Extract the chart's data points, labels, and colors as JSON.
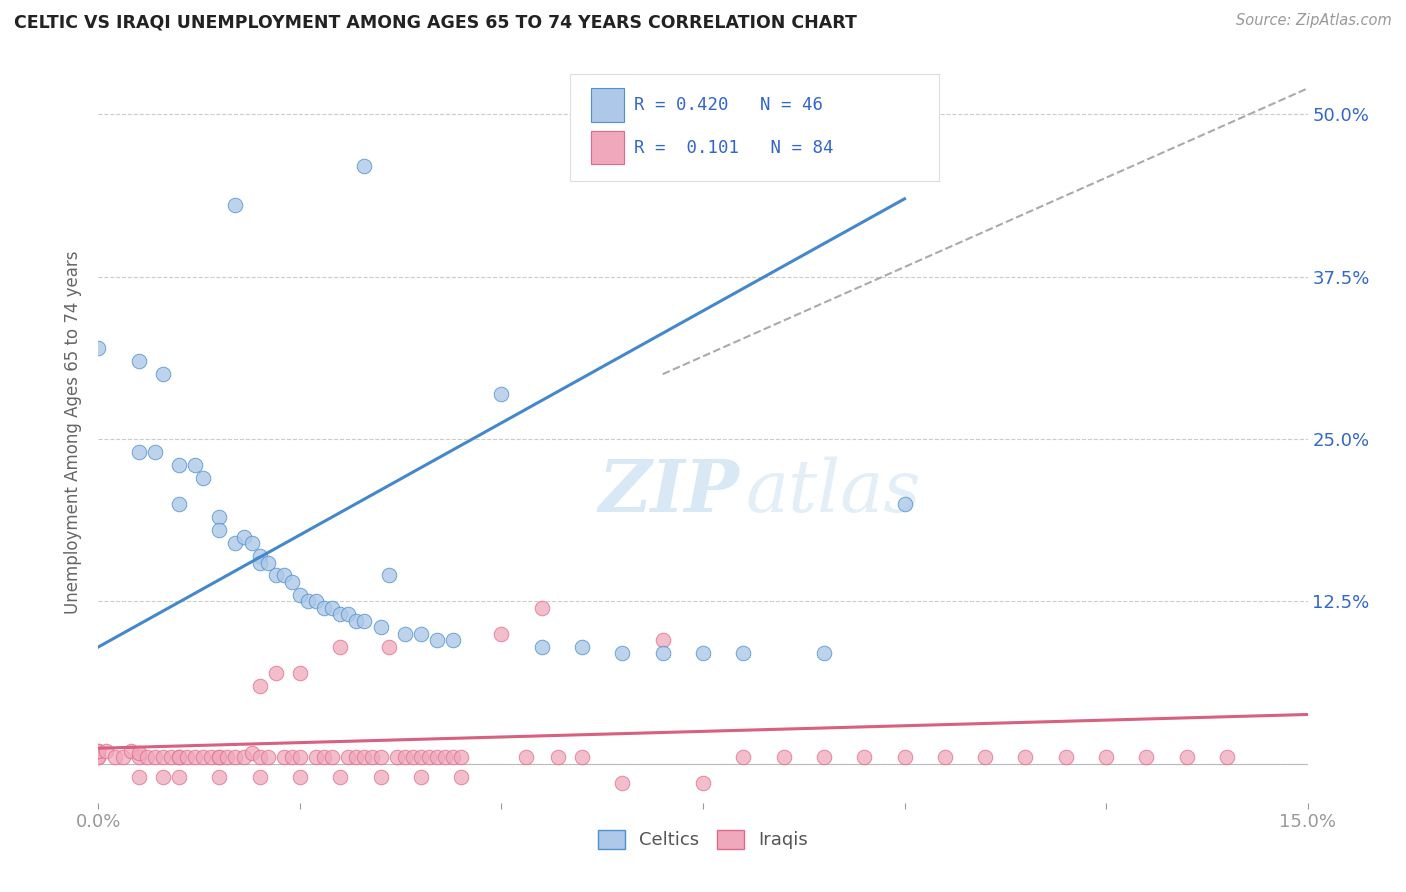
{
  "title": "CELTIC VS IRAQI UNEMPLOYMENT AMONG AGES 65 TO 74 YEARS CORRELATION CHART",
  "source": "Source: ZipAtlas.com",
  "ylabel": "Unemployment Among Ages 65 to 74 years",
  "xlim": [
    0.0,
    0.15
  ],
  "ylim": [
    -0.03,
    0.54
  ],
  "xtick_vals": [
    0.0,
    0.025,
    0.05,
    0.075,
    0.1,
    0.125,
    0.15
  ],
  "xtick_labels": [
    "0.0%",
    "",
    "",
    "",
    "",
    "",
    "15.0%"
  ],
  "ytick_vals": [
    0.0,
    0.125,
    0.25,
    0.375,
    0.5
  ],
  "ytick_labels": [
    "",
    "12.5%",
    "25.0%",
    "37.5%",
    "50.0%"
  ],
  "celtics_R": 0.42,
  "celtics_N": 46,
  "iraqis_R": 0.101,
  "iraqis_N": 84,
  "celtics_color": "#adc8e8",
  "iraqis_color": "#f0a8bc",
  "celtics_edge_color": "#5090d0",
  "iraqis_edge_color": "#e06888",
  "celtics_line_color": "#4488cc",
  "iraqis_line_color": "#d86080",
  "ref_line_color": "#aaaaaa",
  "legend_label_color": "#3366cc",
  "grid_color": "#cccccc",
  "background_color": "#ffffff",
  "watermark_color": "#c8dff0",
  "celtics_line_x": [
    0.0,
    0.1
  ],
  "celtics_line_y": [
    0.09,
    0.435
  ],
  "iraqis_line_x": [
    0.0,
    0.15
  ],
  "iraqis_line_y": [
    0.012,
    0.038
  ],
  "ref_line_x": [
    0.07,
    0.15
  ],
  "ref_line_y": [
    0.3,
    0.52
  ],
  "celtics_pts_x": [
    0.017,
    0.033,
    0.0,
    0.005,
    0.005,
    0.007,
    0.008,
    0.01,
    0.01,
    0.012,
    0.013,
    0.015,
    0.015,
    0.017,
    0.018,
    0.019,
    0.02,
    0.02,
    0.021,
    0.022,
    0.023,
    0.024,
    0.025,
    0.026,
    0.027,
    0.028,
    0.029,
    0.03,
    0.031,
    0.032,
    0.033,
    0.035,
    0.036,
    0.038,
    0.04,
    0.042,
    0.044,
    0.05,
    0.055,
    0.06,
    0.065,
    0.07,
    0.075,
    0.08,
    0.09,
    0.1
  ],
  "celtics_pts_y": [
    0.43,
    0.46,
    0.32,
    0.31,
    0.24,
    0.24,
    0.3,
    0.23,
    0.2,
    0.23,
    0.22,
    0.19,
    0.18,
    0.17,
    0.175,
    0.17,
    0.16,
    0.155,
    0.155,
    0.145,
    0.145,
    0.14,
    0.13,
    0.125,
    0.125,
    0.12,
    0.12,
    0.115,
    0.115,
    0.11,
    0.11,
    0.105,
    0.145,
    0.1,
    0.1,
    0.095,
    0.095,
    0.285,
    0.09,
    0.09,
    0.085,
    0.085,
    0.085,
    0.085,
    0.085,
    0.2
  ],
  "iraqis_pts_x": [
    0.0,
    0.0,
    0.0,
    0.0,
    0.001,
    0.002,
    0.003,
    0.004,
    0.005,
    0.005,
    0.006,
    0.007,
    0.008,
    0.009,
    0.01,
    0.01,
    0.011,
    0.012,
    0.013,
    0.014,
    0.015,
    0.015,
    0.016,
    0.017,
    0.018,
    0.019,
    0.02,
    0.02,
    0.021,
    0.022,
    0.023,
    0.024,
    0.025,
    0.025,
    0.027,
    0.028,
    0.029,
    0.03,
    0.031,
    0.032,
    0.033,
    0.034,
    0.035,
    0.036,
    0.037,
    0.038,
    0.039,
    0.04,
    0.041,
    0.042,
    0.043,
    0.044,
    0.045,
    0.05,
    0.053,
    0.055,
    0.057,
    0.06,
    0.065,
    0.07,
    0.075,
    0.08,
    0.085,
    0.09,
    0.095,
    0.1,
    0.105,
    0.11,
    0.115,
    0.12,
    0.125,
    0.13,
    0.135,
    0.14,
    0.005,
    0.008,
    0.01,
    0.015,
    0.02,
    0.025,
    0.03,
    0.035,
    0.04,
    0.045
  ],
  "iraqis_pts_y": [
    0.005,
    0.005,
    0.01,
    0.01,
    0.01,
    0.005,
    0.005,
    0.01,
    0.005,
    0.008,
    0.005,
    0.005,
    0.005,
    0.005,
    0.005,
    0.005,
    0.005,
    0.005,
    0.005,
    0.005,
    0.005,
    0.005,
    0.005,
    0.005,
    0.005,
    0.008,
    0.005,
    0.06,
    0.005,
    0.07,
    0.005,
    0.005,
    0.005,
    0.07,
    0.005,
    0.005,
    0.005,
    0.09,
    0.005,
    0.005,
    0.005,
    0.005,
    0.005,
    0.09,
    0.005,
    0.005,
    0.005,
    0.005,
    0.005,
    0.005,
    0.005,
    0.005,
    0.005,
    0.1,
    0.005,
    0.12,
    0.005,
    0.005,
    -0.015,
    0.095,
    -0.015,
    0.005,
    0.005,
    0.005,
    0.005,
    0.005,
    0.005,
    0.005,
    0.005,
    0.005,
    0.005,
    0.005,
    0.005,
    0.005,
    -0.01,
    -0.01,
    -0.01,
    -0.01,
    -0.01,
    -0.01,
    -0.01,
    -0.01,
    -0.01,
    -0.01
  ]
}
